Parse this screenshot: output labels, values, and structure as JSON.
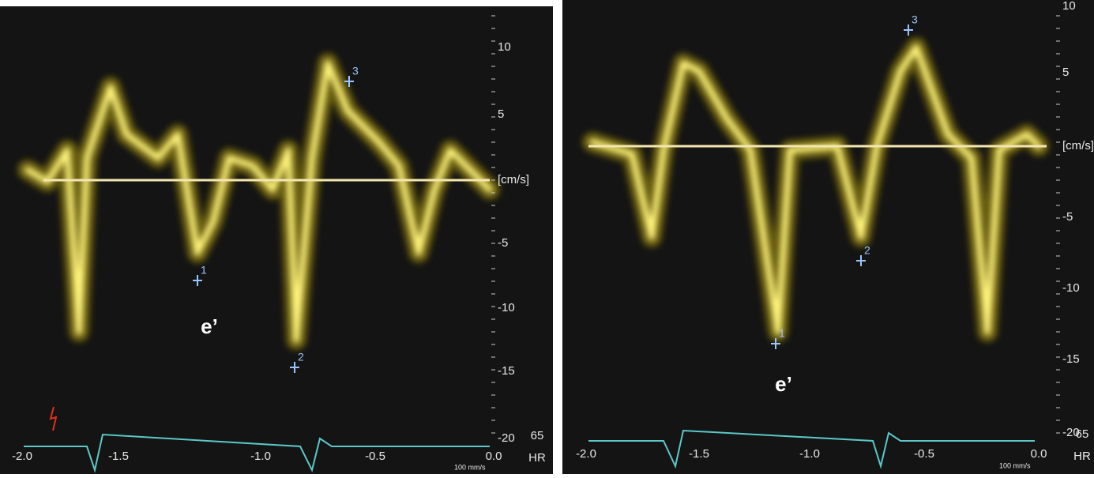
{
  "panels": [
    {
      "unit": "[cm/s]",
      "y_ticks": [
        "10",
        "5",
        "-5",
        "-10",
        "-15",
        "-20"
      ],
      "x_ticks": [
        "-2.0",
        "-1.5",
        "-1.0",
        "-0.5",
        "0.0"
      ],
      "hr_value": "65",
      "hr_label": "HR",
      "speed": "100 mm/s",
      "markers": [
        "1",
        "2",
        "3"
      ],
      "label": "e’"
    },
    {
      "unit": "[cm/s]",
      "y_ticks": [
        "10",
        "5",
        "-5",
        "-10",
        "-15",
        "-20"
      ],
      "x_ticks": [
        "-2.0",
        "-1.5",
        "-1.0",
        "-0.5",
        "0.0"
      ],
      "hr_value": "65",
      "hr_label": "HR",
      "speed": "100 mm/s",
      "markers": [
        "1",
        "2",
        "3"
      ],
      "label": "e’"
    }
  ]
}
